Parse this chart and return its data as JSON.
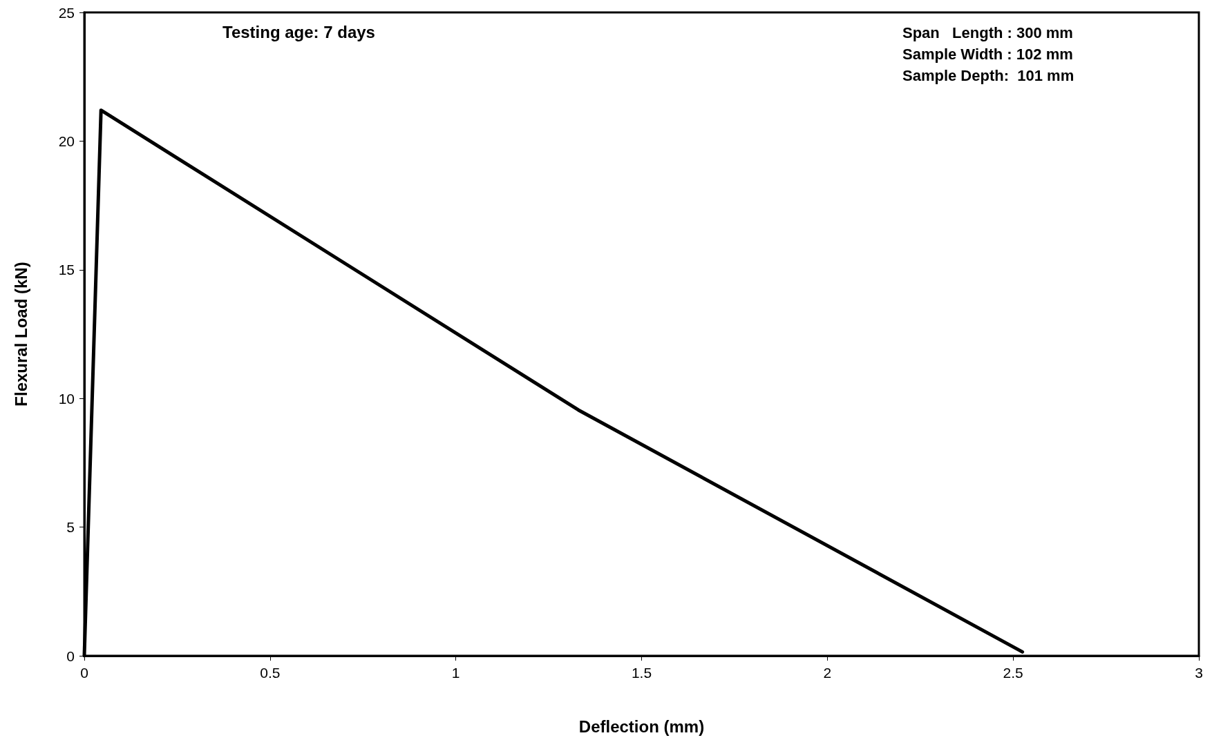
{
  "chart_data": {
    "type": "line",
    "xlabel": "Deflection (mm)",
    "ylabel": "Flexural Load (kN)",
    "x": [
      0,
      0.045,
      1.33,
      2.525
    ],
    "series": [
      {
        "color": "#000000",
        "values": [
          0,
          21.2,
          9.55,
          0.15
        ]
      }
    ],
    "xlim": [
      0,
      3
    ],
    "xticks": [
      0,
      0.5,
      1,
      1.5,
      2,
      2.5,
      3
    ],
    "ylim": [
      0,
      25
    ],
    "yticks": [
      0,
      5,
      10,
      15,
      20,
      25
    ],
    "grid": false,
    "marker": "none",
    "line_style": "solid",
    "annotations": [
      "Testing age: 7 days",
      "Span   Length : 300 mm\nSample Width : 102 mm\nSample Depth:  101 mm"
    ]
  }
}
